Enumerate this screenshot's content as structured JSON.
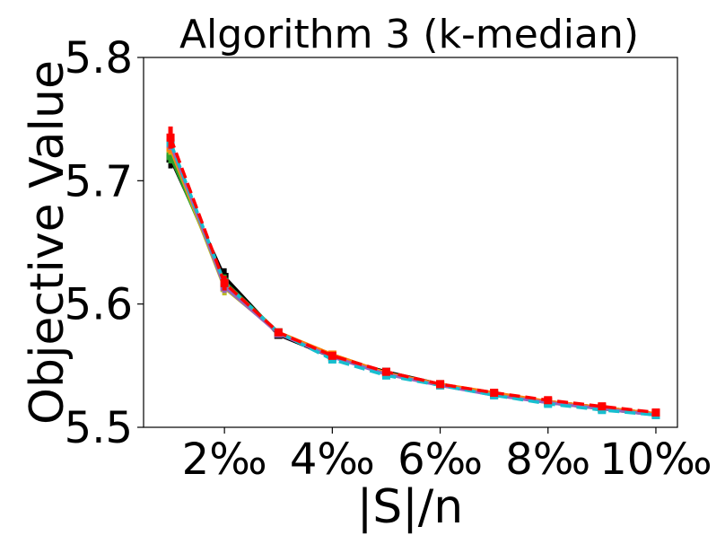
{
  "chart_data": {
    "type": "line",
    "title": "Algorithm 3 (k-median)",
    "xlabel": "|S|/n",
    "ylabel": "Objective Value",
    "xlim": [
      0.5,
      10.4
    ],
    "ylim": [
      5.5,
      5.8
    ],
    "x": [
      1,
      2,
      3,
      4,
      5,
      6,
      7,
      8,
      9,
      10
    ],
    "x_ticks": [
      2,
      4,
      6,
      8,
      10
    ],
    "x_tick_labels": [
      "2‰",
      "4‰",
      "6‰",
      "8‰",
      "10‰"
    ],
    "y_ticks": [
      5.5,
      5.6,
      5.7,
      5.8
    ],
    "y_tick_labels": [
      "5.5",
      "5.6",
      "5.7",
      "5.8"
    ],
    "grid": false,
    "series": [
      {
        "color": "#000000",
        "dash": "solid",
        "values": [
          5.718,
          5.622,
          5.575,
          5.557,
          5.545,
          5.535,
          5.527,
          5.521,
          5.516,
          5.511
        ],
        "errors": [
          0.008,
          0.007,
          0.003,
          0.003,
          0.002,
          0.002,
          0.002,
          0.002,
          0.002,
          0.002
        ]
      },
      {
        "color": "#2ca02c",
        "dash": "solid",
        "values": [
          5.72,
          5.618,
          5.577,
          5.558,
          5.544,
          5.534,
          5.527,
          5.52,
          5.515,
          5.51
        ],
        "errors": [
          0.006,
          0.006,
          0.003,
          0.004,
          0.002,
          0.002,
          0.002,
          0.002,
          0.002,
          0.002
        ]
      },
      {
        "color": "#bcbd22",
        "dash": "solid",
        "values": [
          5.726,
          5.613,
          5.577,
          5.559,
          5.544,
          5.534,
          5.527,
          5.521,
          5.516,
          5.511
        ],
        "errors": [
          0.005,
          0.006,
          0.003,
          0.003,
          0.002,
          0.002,
          0.002,
          0.002,
          0.002,
          0.002
        ]
      },
      {
        "color": "#ff7f0e",
        "dash": "solid",
        "values": [
          5.727,
          5.616,
          5.577,
          5.559,
          5.544,
          5.535,
          5.528,
          5.521,
          5.516,
          5.511
        ],
        "errors": [
          0.005,
          0.005,
          0.003,
          0.003,
          0.002,
          0.002,
          0.002,
          0.002,
          0.002,
          0.002
        ]
      },
      {
        "color": "#9467bd",
        "dash": "solid",
        "values": [
          5.73,
          5.614,
          5.576,
          5.557,
          5.543,
          5.534,
          5.526,
          5.52,
          5.515,
          5.51
        ],
        "errors": [
          0.005,
          0.005,
          0.003,
          0.003,
          0.002,
          0.002,
          0.002,
          0.002,
          0.002,
          0.002
        ]
      },
      {
        "color": "#17becf",
        "dash": "dashed",
        "values": [
          5.731,
          5.617,
          5.577,
          5.555,
          5.542,
          5.534,
          5.526,
          5.519,
          5.514,
          5.51
        ],
        "errors": [
          0.005,
          0.005,
          0.003,
          0.003,
          0.002,
          0.002,
          0.002,
          0.002,
          0.002,
          0.002
        ]
      },
      {
        "color": "#ff0000",
        "dash": "dashed",
        "values": [
          5.735,
          5.617,
          5.577,
          5.558,
          5.545,
          5.535,
          5.528,
          5.522,
          5.517,
          5.512
        ],
        "errors": [
          0.009,
          0.006,
          0.003,
          0.003,
          0.002,
          0.002,
          0.002,
          0.002,
          0.002,
          0.002
        ]
      }
    ]
  }
}
